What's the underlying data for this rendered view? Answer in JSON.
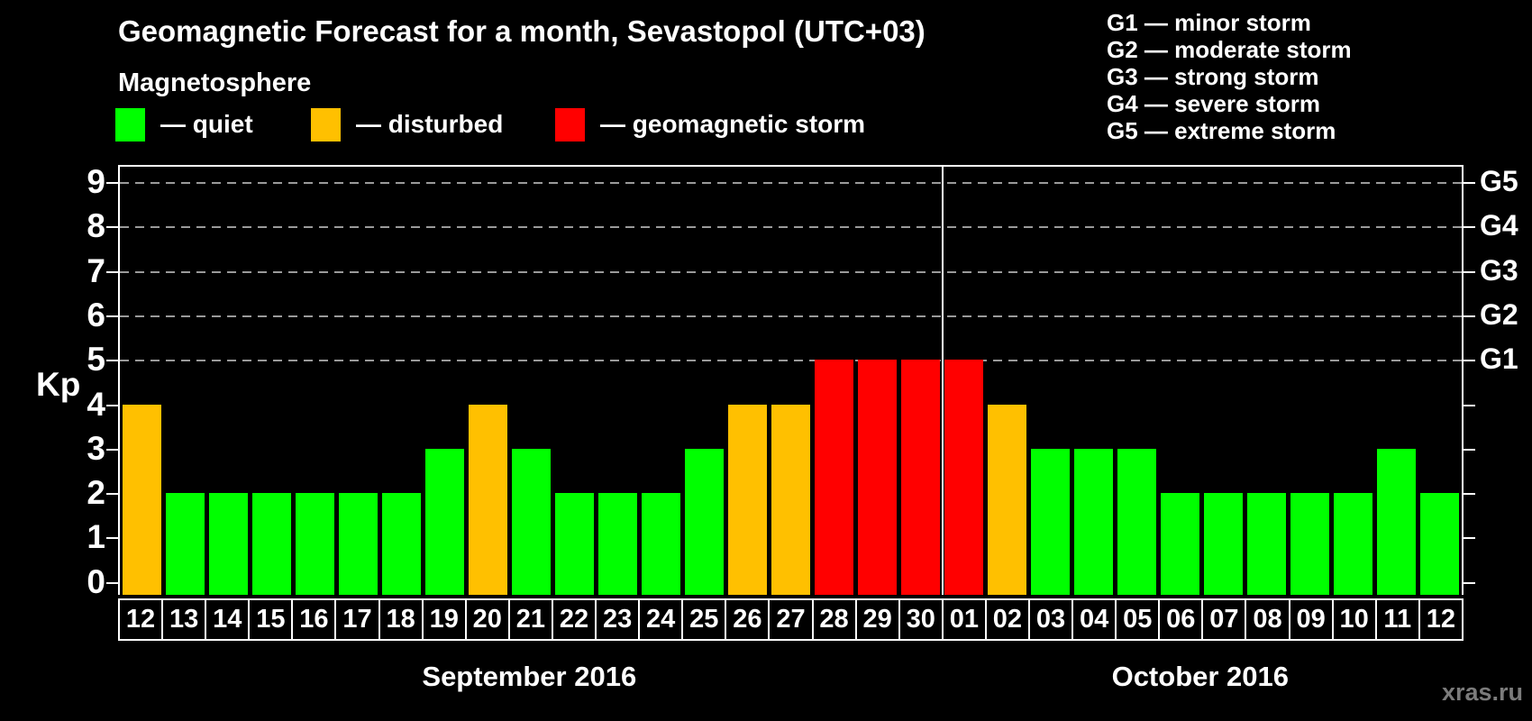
{
  "title": "Geomagnetic Forecast for a month, Sevastopol (UTC+03)",
  "legend": {
    "heading": "Magnetosphere",
    "items": [
      {
        "label": "— quiet",
        "color": "#00ff00"
      },
      {
        "label": "— disturbed",
        "color": "#ffc000"
      },
      {
        "label": "— geomagnetic storm",
        "color": "#ff0000"
      }
    ]
  },
  "storm_legend": [
    "G1 — minor storm",
    "G2 — moderate storm",
    "G3 — strong storm",
    "G4 — severe storm",
    "G5 — extreme storm"
  ],
  "watermark": "xras.ru",
  "chart_data": {
    "type": "bar",
    "title": "Geomagnetic Forecast for a month, Sevastopol (UTC+03)",
    "ylabel_left": "Kp",
    "ylim": [
      0,
      9
    ],
    "grid": "dashed horizontal at Kp 5-9",
    "legend_position": "top",
    "yticks_left": [
      0,
      1,
      2,
      3,
      4,
      5,
      6,
      7,
      8,
      9
    ],
    "yticks_right": {
      "5": "G1",
      "6": "G2",
      "7": "G3",
      "8": "G4",
      "9": "G5"
    },
    "gridlines_at": [
      5,
      6,
      7,
      8,
      9
    ],
    "categories": [
      "12",
      "13",
      "14",
      "15",
      "16",
      "17",
      "18",
      "19",
      "20",
      "21",
      "22",
      "23",
      "24",
      "25",
      "26",
      "27",
      "28",
      "29",
      "30",
      "01",
      "02",
      "03",
      "04",
      "05",
      "06",
      "07",
      "08",
      "09",
      "10",
      "11",
      "12"
    ],
    "values": [
      4,
      2,
      2,
      2,
      2,
      2,
      2,
      3,
      4,
      3,
      2,
      2,
      2,
      3,
      4,
      4,
      5,
      5,
      5,
      5,
      4,
      3,
      3,
      3,
      2,
      2,
      2,
      2,
      2,
      3,
      2
    ],
    "statuses": [
      "disturbed",
      "quiet",
      "quiet",
      "quiet",
      "quiet",
      "quiet",
      "quiet",
      "quiet",
      "disturbed",
      "quiet",
      "quiet",
      "quiet",
      "quiet",
      "quiet",
      "disturbed",
      "disturbed",
      "storm",
      "storm",
      "storm",
      "storm",
      "disturbed",
      "quiet",
      "quiet",
      "quiet",
      "quiet",
      "quiet",
      "quiet",
      "quiet",
      "quiet",
      "quiet",
      "quiet"
    ],
    "status_colors": {
      "quiet": "#00ff00",
      "disturbed": "#ffc000",
      "storm": "#ff0000"
    },
    "month_groups": [
      {
        "label": "September 2016",
        "count": 19
      },
      {
        "label": "October 2016",
        "count": 12
      }
    ]
  }
}
